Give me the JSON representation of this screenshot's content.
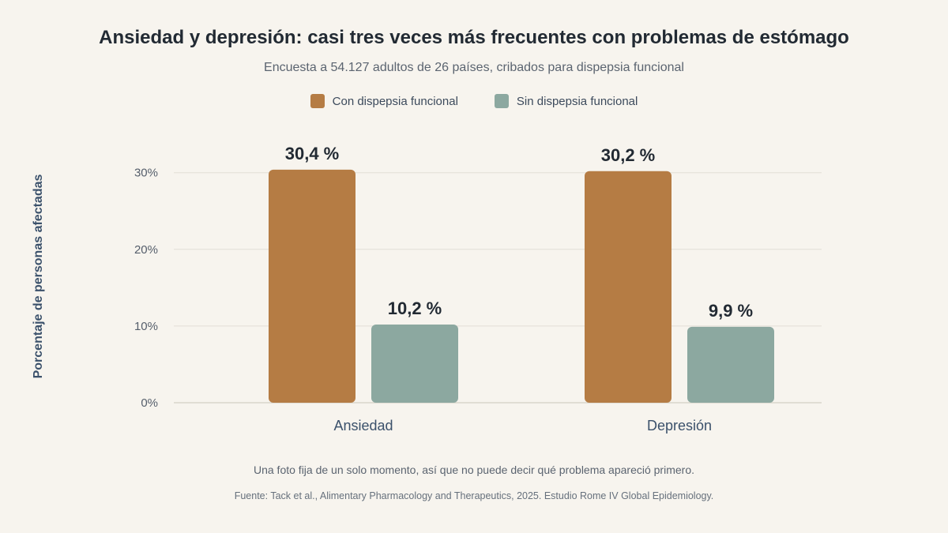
{
  "chart_data": {
    "type": "bar",
    "title": "Ansiedad y depresión: casi tres veces más frecuentes con problemas de estómago",
    "subtitle": "Encuesta a 54.127 adultos de 26 países, cribados para dispepsia funcional",
    "ylabel": "Porcentaje de personas afectadas",
    "xlabel": "",
    "categories": [
      "Ansiedad",
      "Depresión"
    ],
    "series": [
      {
        "name": "Con dispepsia funcional",
        "values": [
          30.4,
          30.2
        ],
        "labels": [
          "30,4 %",
          "30,2 %"
        ],
        "color": "#b57c44"
      },
      {
        "name": "Sin dispepsia funcional",
        "values": [
          10.2,
          9.9
        ],
        "labels": [
          "10,2 %",
          "9,9 %"
        ],
        "color": "#8ca8a0"
      }
    ],
    "ylim": [
      0,
      30
    ],
    "yticks": [
      0,
      10,
      20,
      30
    ],
    "ytick_labels": [
      "0%",
      "10%",
      "20%",
      "30%"
    ],
    "grid": true,
    "legend": "top-center"
  },
  "footer": {
    "note": "Una foto fija de un solo momento, así que no puede decir qué problema apareció primero.",
    "source": "Fuente: Tack et al., Alimentary Pharmacology and Therapeutics, 2025. Estudio Rome IV Global Epidemiology."
  }
}
